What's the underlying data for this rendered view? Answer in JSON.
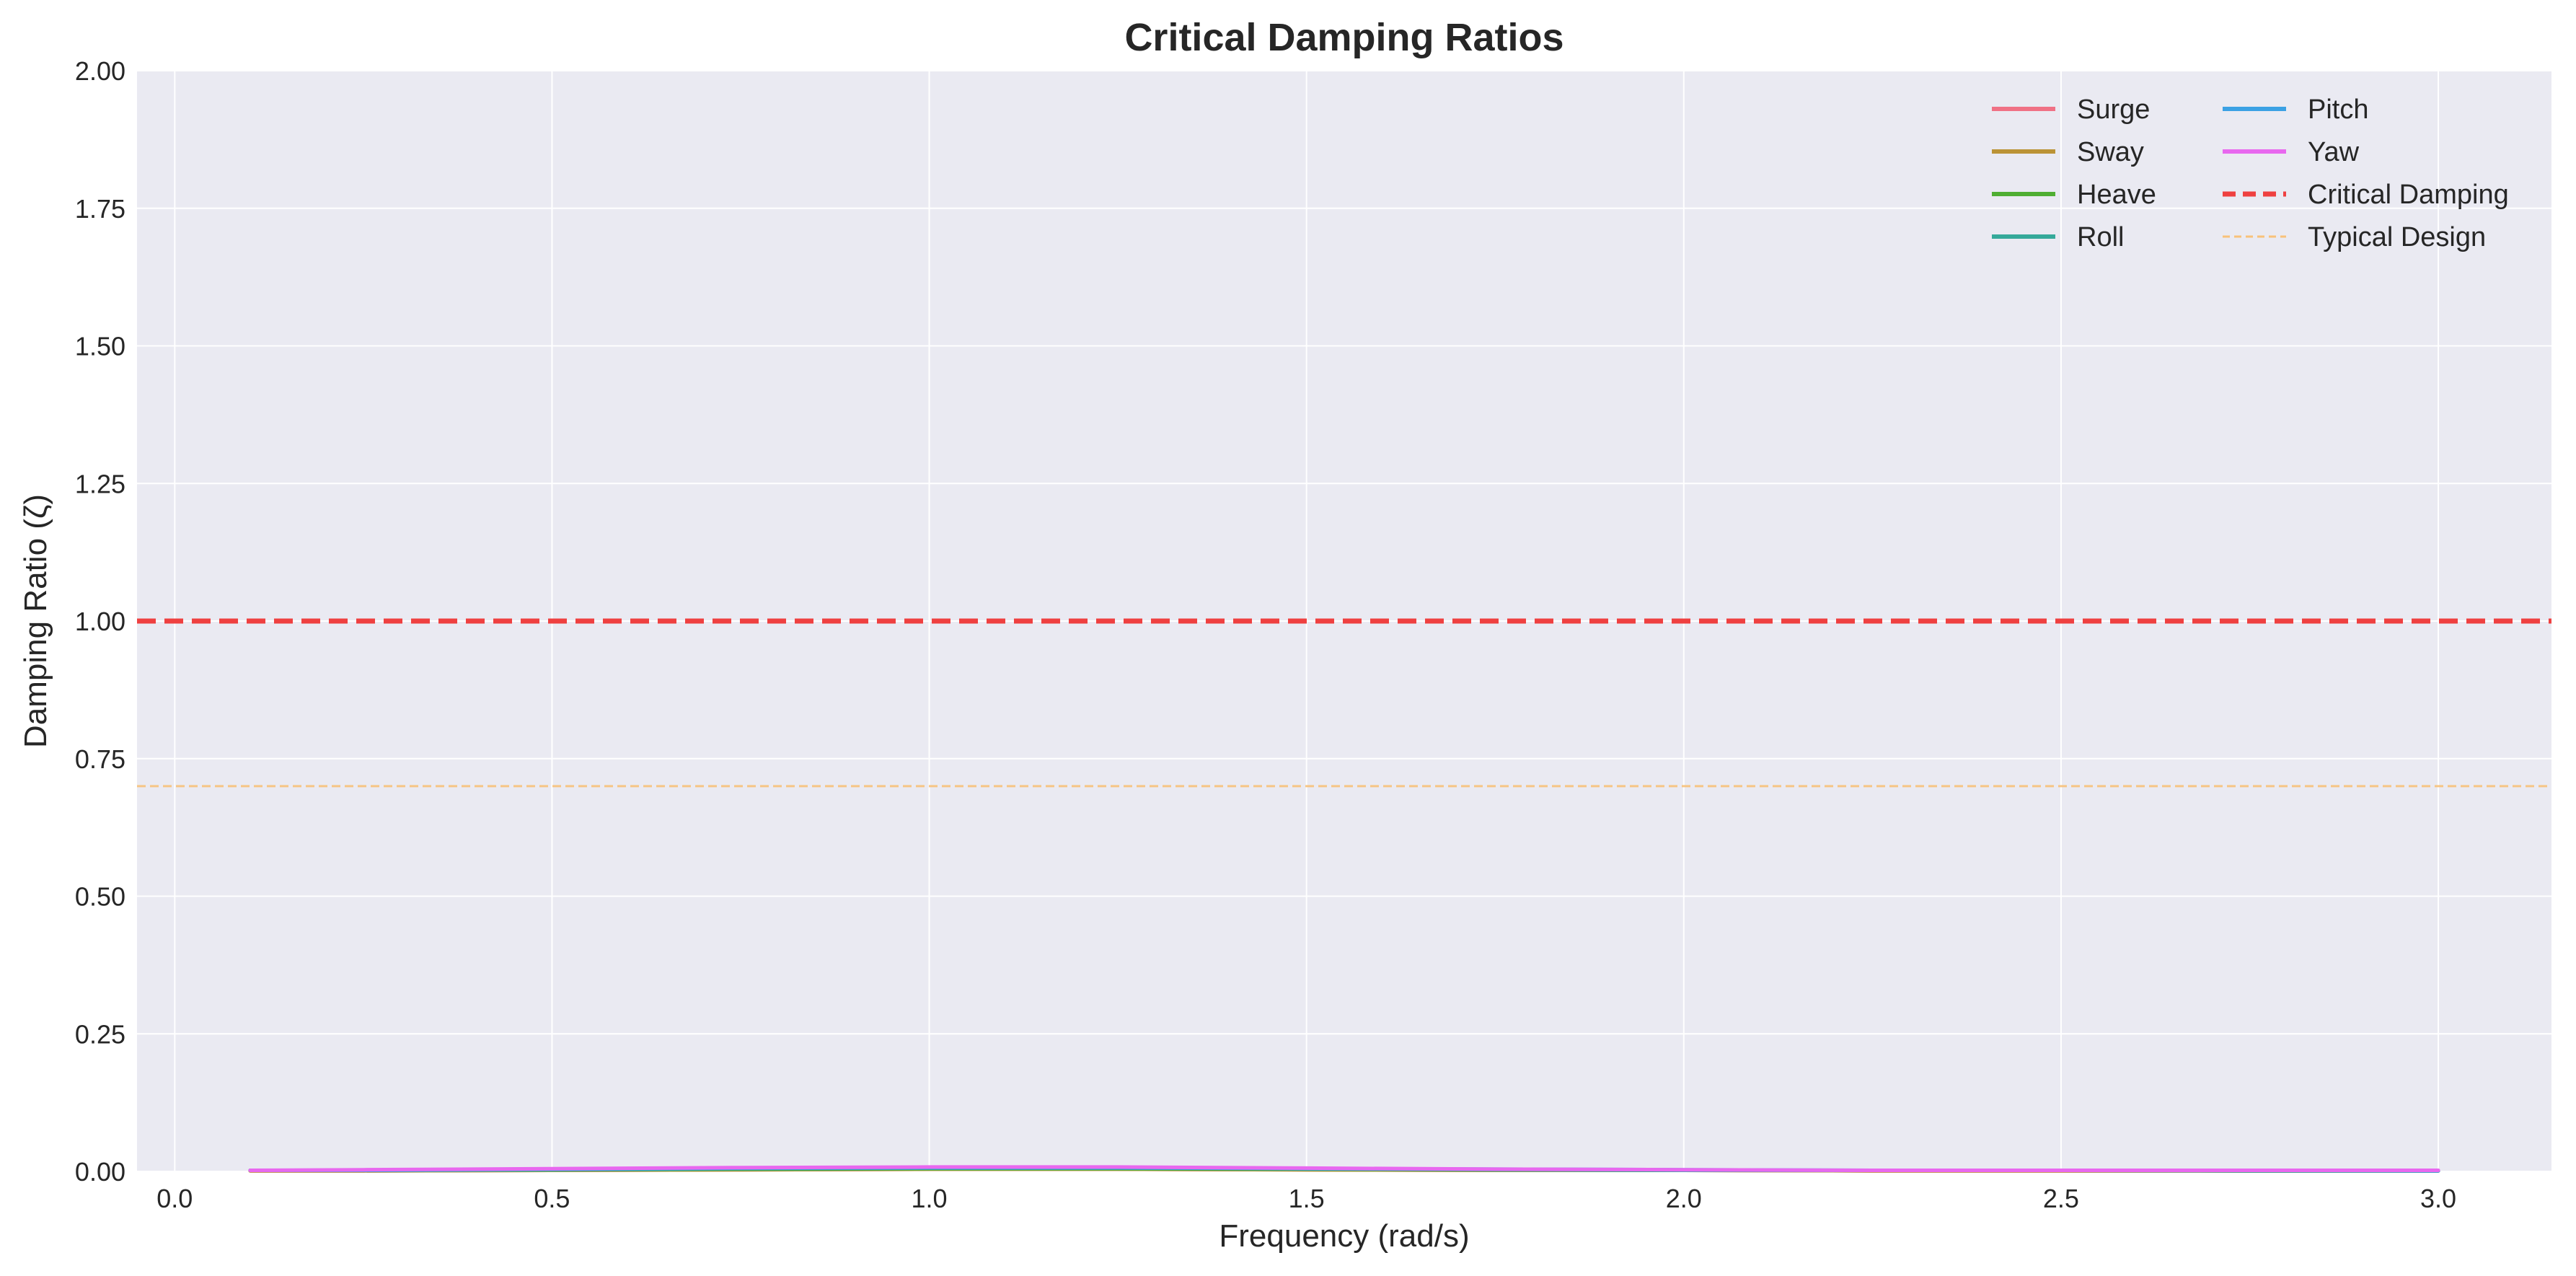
{
  "chart_data": {
    "type": "line",
    "title": "Critical Damping Ratios",
    "xlabel": "Frequency (rad/s)",
    "ylabel": "Damping Ratio (ζ)",
    "xlim": [
      -0.05,
      3.15
    ],
    "ylim": [
      0,
      2.0
    ],
    "xticks": [
      0.0,
      0.5,
      1.0,
      1.5,
      2.0,
      2.5,
      3.0
    ],
    "xtick_labels": [
      "0.0",
      "0.5",
      "1.0",
      "1.5",
      "2.0",
      "2.5",
      "3.0"
    ],
    "yticks": [
      0.0,
      0.25,
      0.5,
      0.75,
      1.0,
      1.25,
      1.5,
      1.75,
      2.0
    ],
    "ytick_labels": [
      "0.00",
      "0.25",
      "0.50",
      "0.75",
      "1.00",
      "1.25",
      "1.50",
      "1.75",
      "2.00"
    ],
    "grid": true,
    "legend_position": "top-right",
    "x": [
      0.1,
      0.25,
      0.5,
      0.75,
      1.0,
      1.25,
      1.5,
      1.75,
      2.0,
      2.25,
      2.5,
      2.75,
      3.0
    ],
    "series": [
      {
        "name": "Surge",
        "color": "#f07185",
        "style": "solid",
        "values": [
          0.001,
          0.001,
          0.002,
          0.003,
          0.004,
          0.004,
          0.003,
          0.002,
          0.002,
          0.001,
          0.001,
          0.001,
          0.001
        ]
      },
      {
        "name": "Sway",
        "color": "#bb9336",
        "style": "solid",
        "values": [
          0.001,
          0.001,
          0.002,
          0.003,
          0.004,
          0.004,
          0.003,
          0.002,
          0.002,
          0.001,
          0.001,
          0.001,
          0.001
        ]
      },
      {
        "name": "Heave",
        "color": "#4fae32",
        "style": "solid",
        "values": [
          0.002,
          0.002,
          0.003,
          0.004,
          0.005,
          0.005,
          0.004,
          0.003,
          0.002,
          0.002,
          0.002,
          0.001,
          0.001
        ]
      },
      {
        "name": "Roll",
        "color": "#35a99a",
        "style": "solid",
        "values": [
          0.002,
          0.002,
          0.003,
          0.005,
          0.006,
          0.006,
          0.005,
          0.003,
          0.002,
          0.002,
          0.002,
          0.001,
          0.001
        ]
      },
      {
        "name": "Pitch",
        "color": "#3ba1e4",
        "style": "solid",
        "values": [
          0.002,
          0.002,
          0.004,
          0.006,
          0.007,
          0.007,
          0.005,
          0.004,
          0.003,
          0.002,
          0.002,
          0.002,
          0.001
        ]
      },
      {
        "name": "Yaw",
        "color": "#e868ef",
        "style": "solid",
        "values": [
          0.002,
          0.003,
          0.005,
          0.007,
          0.008,
          0.008,
          0.006,
          0.004,
          0.003,
          0.002,
          0.002,
          0.002,
          0.002
        ]
      }
    ],
    "reference_lines": [
      {
        "name": "Critical Damping",
        "y": 1.0,
        "color": "#ef4040",
        "style": "dashed-thick"
      },
      {
        "name": "Typical Design",
        "y": 0.7,
        "color": "#f8c27a",
        "style": "dashed-thin"
      }
    ]
  }
}
